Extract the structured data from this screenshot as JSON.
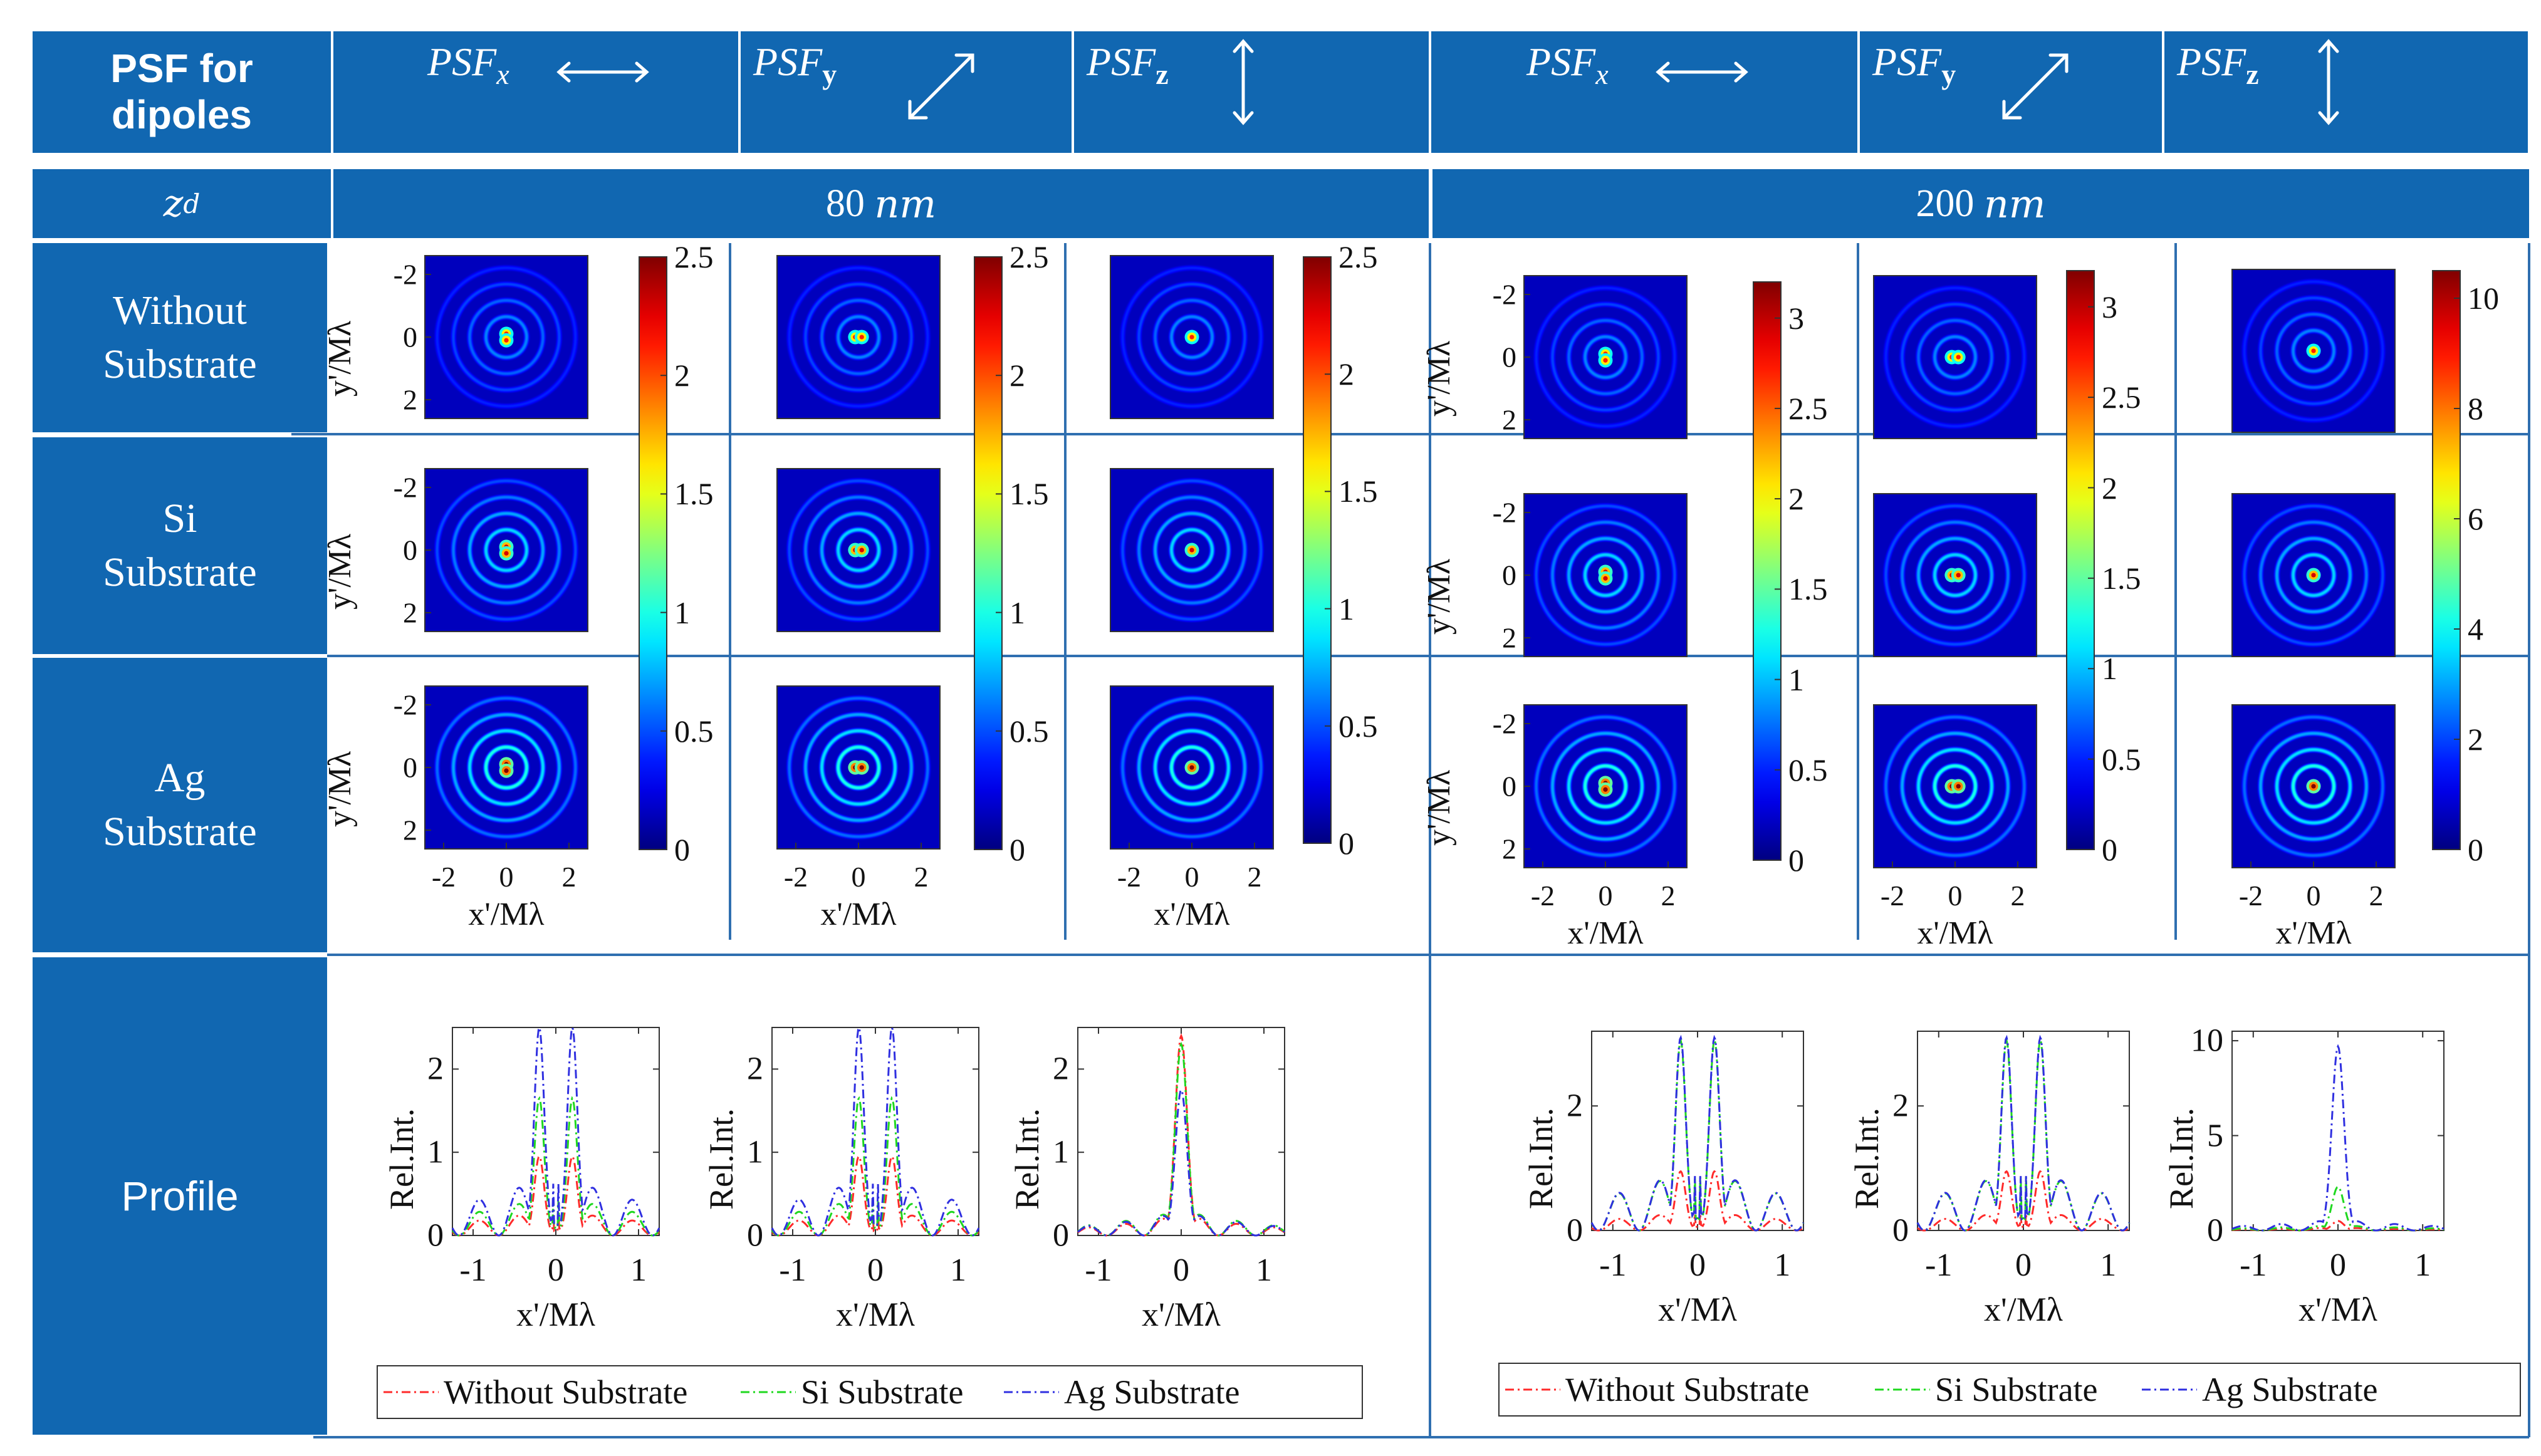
{
  "header": {
    "corner": "PSF for dipoles",
    "columns": [
      {
        "label": "PSF",
        "sub": "x",
        "arrow": "horizontal"
      },
      {
        "label": "PSF",
        "sub": "y",
        "arrow": "diagonal"
      },
      {
        "label": "PSF",
        "sub": "z",
        "arrow": "vertical"
      },
      {
        "label": "PSF",
        "sub": "x",
        "arrow": "horizontal"
      },
      {
        "label": "PSF",
        "sub": "y",
        "arrow": "diagonal"
      },
      {
        "label": "PSF",
        "sub": "z",
        "arrow": "vertical"
      }
    ]
  },
  "zd_row": {
    "label": "z",
    "label_sub": "d",
    "groups": [
      {
        "value": "80",
        "unit": "nm"
      },
      {
        "value": "200",
        "unit": "nm"
      }
    ]
  },
  "row_labels": [
    "Without Substrate",
    "Si Substrate",
    "Ag Substrate"
  ],
  "profile_label": "Profile",
  "axis_labels": {
    "x": "x'/Mλ",
    "y": "y'/Mλ",
    "rel": "Rel.Int."
  },
  "psf_ticks": [
    "-2",
    "0",
    "2"
  ],
  "colorbars": [
    {
      "max": 2.5,
      "ticks": [
        "0",
        "0.5",
        "1",
        "1.5",
        "2",
        "2.5"
      ]
    },
    {
      "max": 2.5,
      "ticks": [
        "0",
        "0.5",
        "1",
        "1.5",
        "2",
        "2.5"
      ]
    },
    {
      "max": 2.5,
      "ticks": [
        "0",
        "0.5",
        "1",
        "1.5",
        "2",
        "2.5"
      ]
    },
    {
      "max": 3.2,
      "ticks": [
        "0",
        "0.5",
        "1",
        "1.5",
        "2",
        "2.5",
        "3"
      ]
    },
    {
      "max": 3.2,
      "ticks": [
        "0",
        "0.5",
        "1",
        "1.5",
        "2",
        "2.5",
        "3"
      ]
    },
    {
      "max": 10.5,
      "ticks": [
        "0",
        "2",
        "4",
        "6",
        "8",
        "10"
      ]
    }
  ],
  "legend": {
    "entries": [
      "Without Substrate",
      "Si Substrate",
      "Ag Substrate"
    ],
    "colors": [
      "#ff2a2a",
      "#1fd81f",
      "#2f2fe0"
    ]
  },
  "colors": {
    "header_blue": "#1167b1",
    "grid_line": "#2f6fb0",
    "plot_frame": "#333333"
  },
  "chart_data": [
    {
      "type": "line",
      "title": "Profile PSFx, zd = 80 nm",
      "xlabel": "x'/Mλ",
      "ylabel": "Rel.Int.",
      "xlim": [
        -1.25,
        1.25
      ],
      "ylim": [
        0,
        2.5
      ],
      "xticks": [
        "-1",
        "0",
        "1"
      ],
      "yticks": [
        "0",
        "1",
        "2"
      ],
      "series": [
        {
          "name": "Without Substrate",
          "peak_x": 0.2,
          "peak": 0.95,
          "ring_period": 0.48,
          "ring_rel": 0.33
        },
        {
          "name": "Si Substrate",
          "peak_x": 0.2,
          "peak": 1.65,
          "ring_period": 0.48,
          "ring_rel": 0.3
        },
        {
          "name": "Ag Substrate",
          "peak_x": 0.2,
          "peak": 2.5,
          "ring_period": 0.48,
          "ring_rel": 0.3
        }
      ]
    },
    {
      "type": "line",
      "title": "Profile PSFy, zd = 80 nm",
      "xlabel": "x'/Mλ",
      "ylabel": "Rel.Int.",
      "xlim": [
        -1.25,
        1.25
      ],
      "ylim": [
        0,
        2.5
      ],
      "xticks": [
        "-1",
        "0",
        "1"
      ],
      "yticks": [
        "0",
        "1",
        "2"
      ],
      "series": [
        {
          "name": "Without Substrate",
          "peak_x": 0.2,
          "peak": 0.95,
          "ring_period": 0.48,
          "ring_rel": 0.33
        },
        {
          "name": "Si Substrate",
          "peak_x": 0.2,
          "peak": 1.65,
          "ring_period": 0.48,
          "ring_rel": 0.3
        },
        {
          "name": "Ag Substrate",
          "peak_x": 0.2,
          "peak": 2.5,
          "ring_period": 0.48,
          "ring_rel": 0.3
        }
      ]
    },
    {
      "type": "line",
      "title": "Profile PSFz, zd = 80 nm",
      "xlabel": "x'/Mλ",
      "ylabel": "Rel.Int.",
      "xlim": [
        -1.25,
        1.25
      ],
      "ylim": [
        0,
        2.5
      ],
      "xticks": [
        "-1",
        "0",
        "1"
      ],
      "yticks": [
        "0",
        "1",
        "2"
      ],
      "series": [
        {
          "name": "Without Substrate",
          "peak_x": 0,
          "peak": 2.4,
          "ring_period": 0.45,
          "ring_rel": 0.1
        },
        {
          "name": "Si Substrate",
          "peak_x": 0,
          "peak": 2.3,
          "ring_period": 0.45,
          "ring_rel": 0.13
        },
        {
          "name": "Ag Substrate",
          "peak_x": 0,
          "peak": 1.75,
          "ring_period": 0.45,
          "ring_rel": 0.16
        }
      ]
    },
    {
      "type": "line",
      "title": "Profile PSFx, zd = 200 nm",
      "xlabel": "x'/Mλ",
      "ylabel": "Rel.Int.",
      "xlim": [
        -1.25,
        1.25
      ],
      "ylim": [
        0,
        3.2
      ],
      "xticks": [
        "-1",
        "0",
        "1"
      ],
      "yticks": [
        "0",
        "2"
      ],
      "series": [
        {
          "name": "Without Substrate",
          "peak_x": 0.2,
          "peak": 0.95,
          "ring_period": 0.48,
          "ring_rel": 0.34
        },
        {
          "name": "Si Substrate",
          "peak_x": 0.2,
          "peak": 3.05,
          "ring_period": 0.48,
          "ring_rel": 0.34
        },
        {
          "name": "Ag Substrate",
          "peak_x": 0.2,
          "peak": 3.1,
          "ring_period": 0.48,
          "ring_rel": 0.34
        }
      ]
    },
    {
      "type": "line",
      "title": "Profile PSFy, zd = 200 nm",
      "xlabel": "x'/Mλ",
      "ylabel": "Rel.Int.",
      "xlim": [
        -1.25,
        1.25
      ],
      "ylim": [
        0,
        3.2
      ],
      "xticks": [
        "-1",
        "0",
        "1"
      ],
      "yticks": [
        "0",
        "2"
      ],
      "series": [
        {
          "name": "Without Substrate",
          "peak_x": 0.2,
          "peak": 0.95,
          "ring_period": 0.48,
          "ring_rel": 0.34
        },
        {
          "name": "Si Substrate",
          "peak_x": 0.2,
          "peak": 3.05,
          "ring_period": 0.48,
          "ring_rel": 0.34
        },
        {
          "name": "Ag Substrate",
          "peak_x": 0.2,
          "peak": 3.1,
          "ring_period": 0.48,
          "ring_rel": 0.34
        }
      ]
    },
    {
      "type": "line",
      "title": "Profile PSFz, zd = 200 nm",
      "xlabel": "x'/Mλ",
      "ylabel": "Rel.Int.",
      "xlim": [
        -1.25,
        1.25
      ],
      "ylim": [
        0,
        10.5
      ],
      "xticks": [
        "-1",
        "0",
        "1"
      ],
      "yticks": [
        "0",
        "5",
        "10"
      ],
      "series": [
        {
          "name": "Without Substrate",
          "peak_x": 0,
          "peak": 0.5,
          "ring_period": 0.45,
          "ring_rel": 0.3
        },
        {
          "name": "Si Substrate",
          "peak_x": 0,
          "peak": 2.3,
          "ring_period": 0.45,
          "ring_rel": 0.12
        },
        {
          "name": "Ag Substrate",
          "peak_x": 0,
          "peak": 9.7,
          "ring_period": 0.45,
          "ring_rel": 0.06
        }
      ]
    }
  ]
}
